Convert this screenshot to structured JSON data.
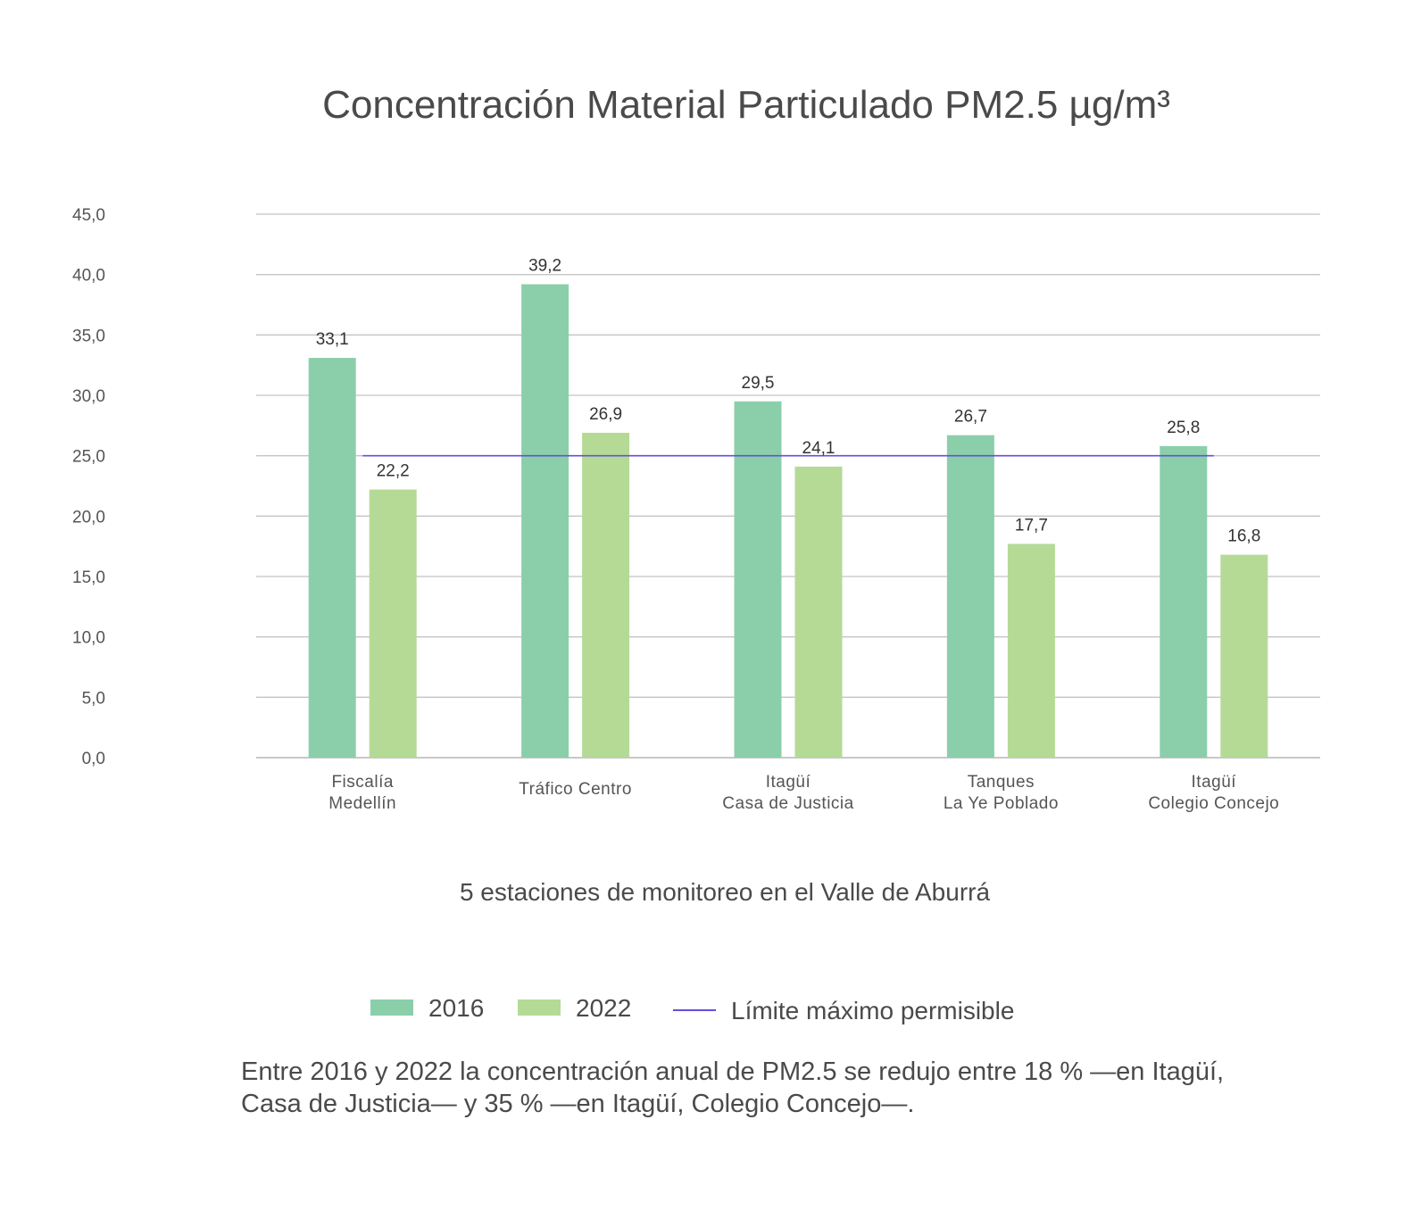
{
  "chart_data": {
    "type": "bar",
    "title": "Concentración Material Particulado PM2.5 µg/m³",
    "xlabel": "5 estaciones de monitoreo en el Valle de Aburrá",
    "ylabel": "",
    "ylim": [
      0,
      45
    ],
    "yticks": [
      "0,0",
      "5,0",
      "10,0",
      "15,0",
      "20,0",
      "25,0",
      "30,0",
      "35,0",
      "40,0",
      "45,0"
    ],
    "grid": true,
    "legend_position": "bottom",
    "categories": [
      [
        "Fiscalía",
        "Medellín"
      ],
      [
        "Tráfico Centro"
      ],
      [
        "Itagüí",
        "Casa de Justicia"
      ],
      [
        "Tanques",
        "La Ye Poblado"
      ],
      [
        "Itagüí",
        "Colegio Concejo"
      ]
    ],
    "series": [
      {
        "name": "2016",
        "color": "#8bcfaa",
        "values": [
          33.1,
          39.2,
          29.5,
          26.7,
          25.8
        ],
        "labels": [
          "33,1",
          "39,2",
          "29,5",
          "26,7",
          "25,8"
        ]
      },
      {
        "name": "2022",
        "color": "#b5da96",
        "values": [
          22.2,
          26.9,
          24.1,
          17.7,
          16.8
        ],
        "labels": [
          "22,2",
          "26,9",
          "24,1",
          "17,7",
          "16,8"
        ]
      }
    ],
    "reference_line": {
      "name": "Límite máximo permisible",
      "value": 25,
      "color": "#6a4ce0"
    }
  },
  "note": "Entre 2016 y 2022 la concentración anual de PM2.5 se redujo entre 18 % —en Itagüí, Casa de Justicia— y 35 % —en  Itagüí, Colegio Concejo—."
}
